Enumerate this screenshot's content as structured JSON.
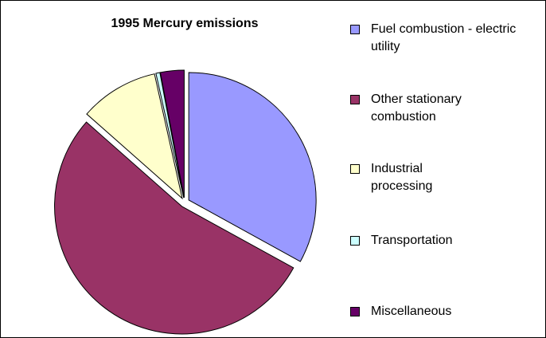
{
  "chart_data": {
    "type": "pie",
    "title": "1995 Mercury emissions",
    "categories": [
      "Fuel combustion - electric utility",
      "Other stationary combustion",
      "Industrial processing",
      "Transportation",
      "Miscellaneous"
    ],
    "values": [
      33,
      53.5,
      10,
      0.5,
      3
    ],
    "colors": [
      "#9999ff",
      "#993366",
      "#ffffcc",
      "#ccffff",
      "#660066"
    ],
    "legend": "right"
  }
}
